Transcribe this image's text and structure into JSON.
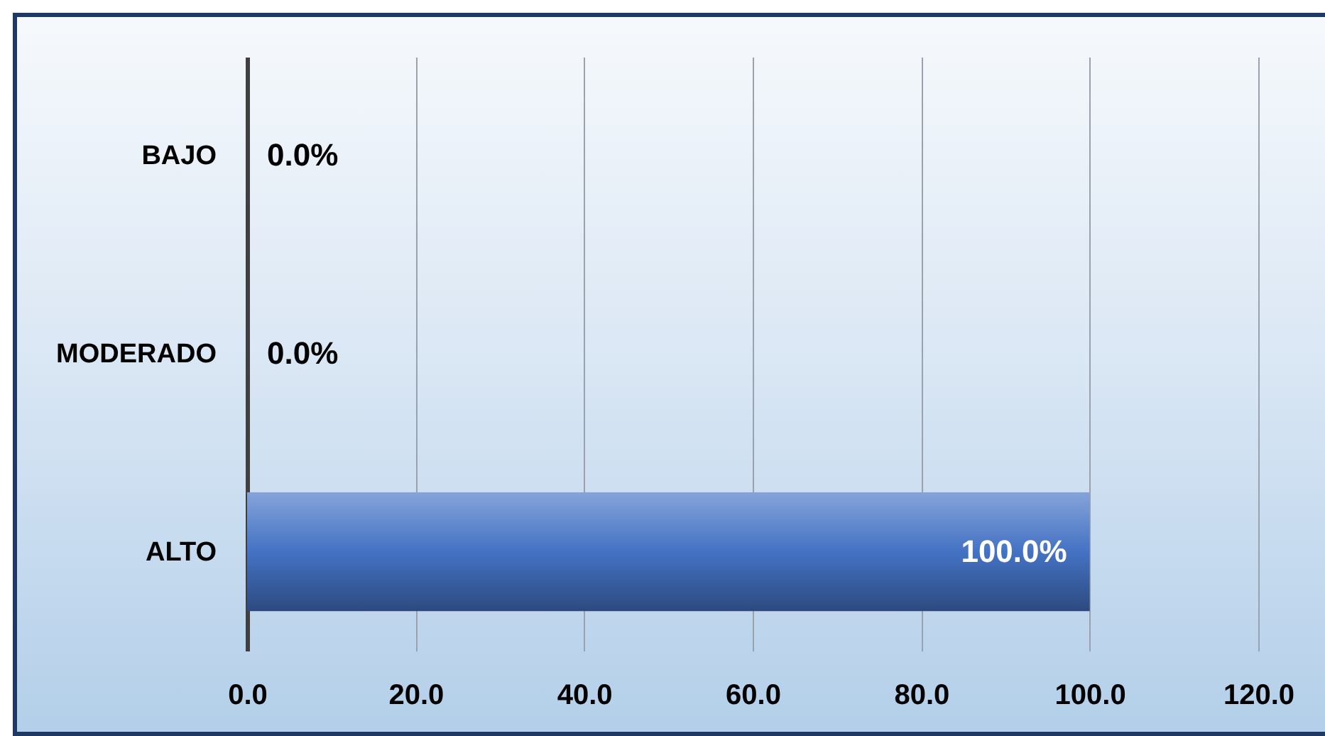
{
  "chart_data": {
    "type": "bar",
    "orientation": "horizontal",
    "categories": [
      "BAJO",
      "MODERADO",
      "ALTO"
    ],
    "values": [
      0,
      0,
      100
    ],
    "value_labels": [
      "0.0%",
      "0.0%",
      "100.0%"
    ],
    "color": "#4472c4",
    "xlim": [
      0,
      120
    ],
    "xticks": [
      {
        "value": 0,
        "label": "0.0"
      },
      {
        "value": 20,
        "label": "20.0"
      },
      {
        "value": 40,
        "label": "40.0"
      },
      {
        "value": 60,
        "label": "60.0"
      },
      {
        "value": 80,
        "label": "80.0"
      },
      {
        "value": 100,
        "label": "100.0"
      },
      {
        "value": 120,
        "label": "120.0"
      }
    ],
    "grid": "x"
  }
}
